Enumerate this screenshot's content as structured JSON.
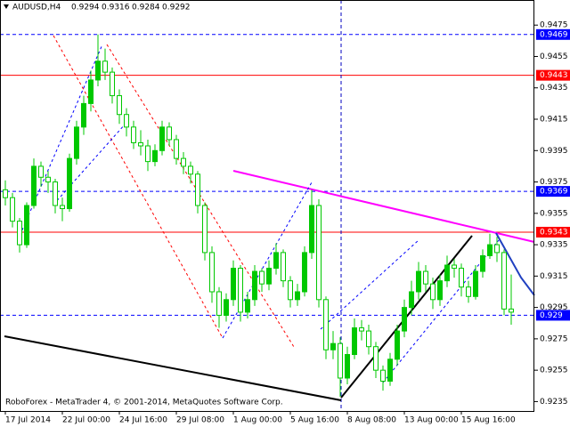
{
  "header": {
    "symbol": "AUDUSD,H4",
    "open": 0.9294,
    "high": 0.9316,
    "low": 0.9284,
    "close": 0.9292
  },
  "footer": "RoboForex - MetaTrader 4, © 2001-2014, MetaQuotes Software Corp.",
  "chart_data": {
    "type": "candlestick",
    "categories": [
      "17 Jul 2014",
      null,
      null,
      null,
      null,
      null,
      null,
      null,
      "22 Jul 00:00",
      null,
      null,
      null,
      null,
      null,
      null,
      null,
      "24 Jul 16:00",
      null,
      null,
      null,
      null,
      null,
      null,
      null,
      "29 Jul 08:00",
      null,
      null,
      null,
      null,
      null,
      null,
      null,
      "1 Aug 00:00",
      null,
      null,
      null,
      null,
      null,
      null,
      null,
      "5 Aug 16:00",
      null,
      null,
      null,
      null,
      null,
      null,
      null,
      "8 Aug 08:00",
      null,
      null,
      null,
      null,
      null,
      null,
      null,
      "13 Aug 00:00",
      null,
      null,
      null,
      null,
      null,
      null,
      null,
      "15 Aug 16:00",
      null,
      null,
      null,
      null,
      null,
      null,
      null
    ],
    "open": [
      0.937,
      0.9365,
      0.935,
      0.9335,
      0.936,
      0.9385,
      0.9378,
      0.9375,
      0.936,
      0.9358,
      0.939,
      0.941,
      0.9425,
      0.944,
      0.9452,
      0.9445,
      0.943,
      0.9418,
      0.941,
      0.94,
      0.9398,
      0.9388,
      0.9395,
      0.941,
      0.9402,
      0.939,
      0.9385,
      0.938,
      0.936,
      0.933,
      0.9305,
      0.929,
      0.93,
      0.932,
      0.9292,
      0.93,
      0.9318,
      0.931,
      0.932,
      0.933,
      0.9312,
      0.93,
      0.9305,
      0.933,
      0.936,
      0.93,
      0.9268,
      0.9272,
      0.925,
      0.9265,
      0.9282,
      0.928,
      0.927,
      0.9255,
      0.9248,
      0.9262,
      0.928,
      0.9295,
      0.9305,
      0.9318,
      0.931,
      0.93,
      0.9312,
      0.9322,
      0.932,
      0.9308,
      0.9302,
      0.9318,
      0.9328,
      0.9335,
      0.933,
      0.9294
    ],
    "high": [
      0.9376,
      0.9368,
      0.9352,
      0.9362,
      0.939,
      0.9388,
      0.9382,
      0.9377,
      0.9365,
      0.9393,
      0.9414,
      0.943,
      0.9446,
      0.9469,
      0.946,
      0.9448,
      0.9434,
      0.9422,
      0.9414,
      0.9408,
      0.9402,
      0.9399,
      0.9414,
      0.9413,
      0.9405,
      0.9394,
      0.9388,
      0.9382,
      0.9362,
      0.9334,
      0.9308,
      0.9304,
      0.9325,
      0.9322,
      0.9305,
      0.9322,
      0.932,
      0.9325,
      0.9336,
      0.9332,
      0.9315,
      0.931,
      0.9334,
      0.937,
      0.9364,
      0.9302,
      0.928,
      0.9276,
      0.927,
      0.9288,
      0.9287,
      0.9284,
      0.9273,
      0.9258,
      0.9266,
      0.9284,
      0.93,
      0.9312,
      0.9324,
      0.9322,
      0.9314,
      0.9316,
      0.9328,
      0.9326,
      0.9323,
      0.9312,
      0.9322,
      0.9332,
      0.9342,
      0.934,
      0.9332,
      0.9316
    ],
    "low": [
      0.936,
      0.9346,
      0.933,
      0.9333,
      0.9358,
      0.9372,
      0.9368,
      0.9355,
      0.935,
      0.9356,
      0.9386,
      0.9405,
      0.942,
      0.9436,
      0.944,
      0.9425,
      0.9412,
      0.9404,
      0.9396,
      0.9392,
      0.9382,
      0.9385,
      0.9392,
      0.9398,
      0.9386,
      0.938,
      0.9374,
      0.9355,
      0.9325,
      0.9298,
      0.9282,
      0.9286,
      0.9296,
      0.9286,
      0.9288,
      0.9296,
      0.9305,
      0.9306,
      0.9316,
      0.9308,
      0.9295,
      0.9296,
      0.9302,
      0.9326,
      0.9295,
      0.9262,
      0.9262,
      0.9238,
      0.9246,
      0.9262,
      0.9274,
      0.9265,
      0.925,
      0.9242,
      0.9245,
      0.9258,
      0.9276,
      0.929,
      0.93,
      0.9305,
      0.9294,
      0.9296,
      0.9308,
      0.9314,
      0.9302,
      0.9298,
      0.93,
      0.9314,
      0.9326,
      0.9324,
      0.929,
      0.9284
    ],
    "close": [
      0.9365,
      0.935,
      0.9335,
      0.936,
      0.9385,
      0.9378,
      0.9375,
      0.936,
      0.9358,
      0.939,
      0.941,
      0.9425,
      0.944,
      0.9452,
      0.9445,
      0.943,
      0.9418,
      0.941,
      0.94,
      0.9398,
      0.9388,
      0.9395,
      0.941,
      0.9402,
      0.939,
      0.9385,
      0.938,
      0.936,
      0.933,
      0.9305,
      0.929,
      0.93,
      0.932,
      0.9292,
      0.93,
      0.9318,
      0.931,
      0.932,
      0.933,
      0.9312,
      0.93,
      0.9305,
      0.933,
      0.936,
      0.93,
      0.9268,
      0.9272,
      0.925,
      0.9265,
      0.9282,
      0.928,
      0.927,
      0.9255,
      0.9248,
      0.9262,
      0.928,
      0.9295,
      0.9305,
      0.9318,
      0.931,
      0.93,
      0.9312,
      0.9322,
      0.932,
      0.9308,
      0.9302,
      0.9318,
      0.9328,
      0.9335,
      0.933,
      0.9294,
      0.9292
    ],
    "up_color": "#00c800",
    "down_color": "#ffffff",
    "wick_color": "#00c800",
    "ylim": [
      0.9229,
      0.9491
    ],
    "yticks": [
      0.9475,
      0.9455,
      0.9435,
      0.9415,
      0.9395,
      0.9375,
      0.9355,
      0.9335,
      0.9315,
      0.9295,
      0.9275,
      0.9255,
      0.9235
    ],
    "price_levels": [
      {
        "value": 0.9469,
        "color": "#0000ff",
        "style": "dashed"
      },
      {
        "value": 0.9443,
        "color": "#ff0000",
        "style": "solid"
      },
      {
        "value": 0.9369,
        "color": "#0000ff",
        "style": "dashed"
      },
      {
        "value": 0.9343,
        "color": "#ff0000",
        "style": "solid"
      },
      {
        "value": 0.929,
        "color": "#0000ff",
        "style": "dashed"
      }
    ]
  }
}
